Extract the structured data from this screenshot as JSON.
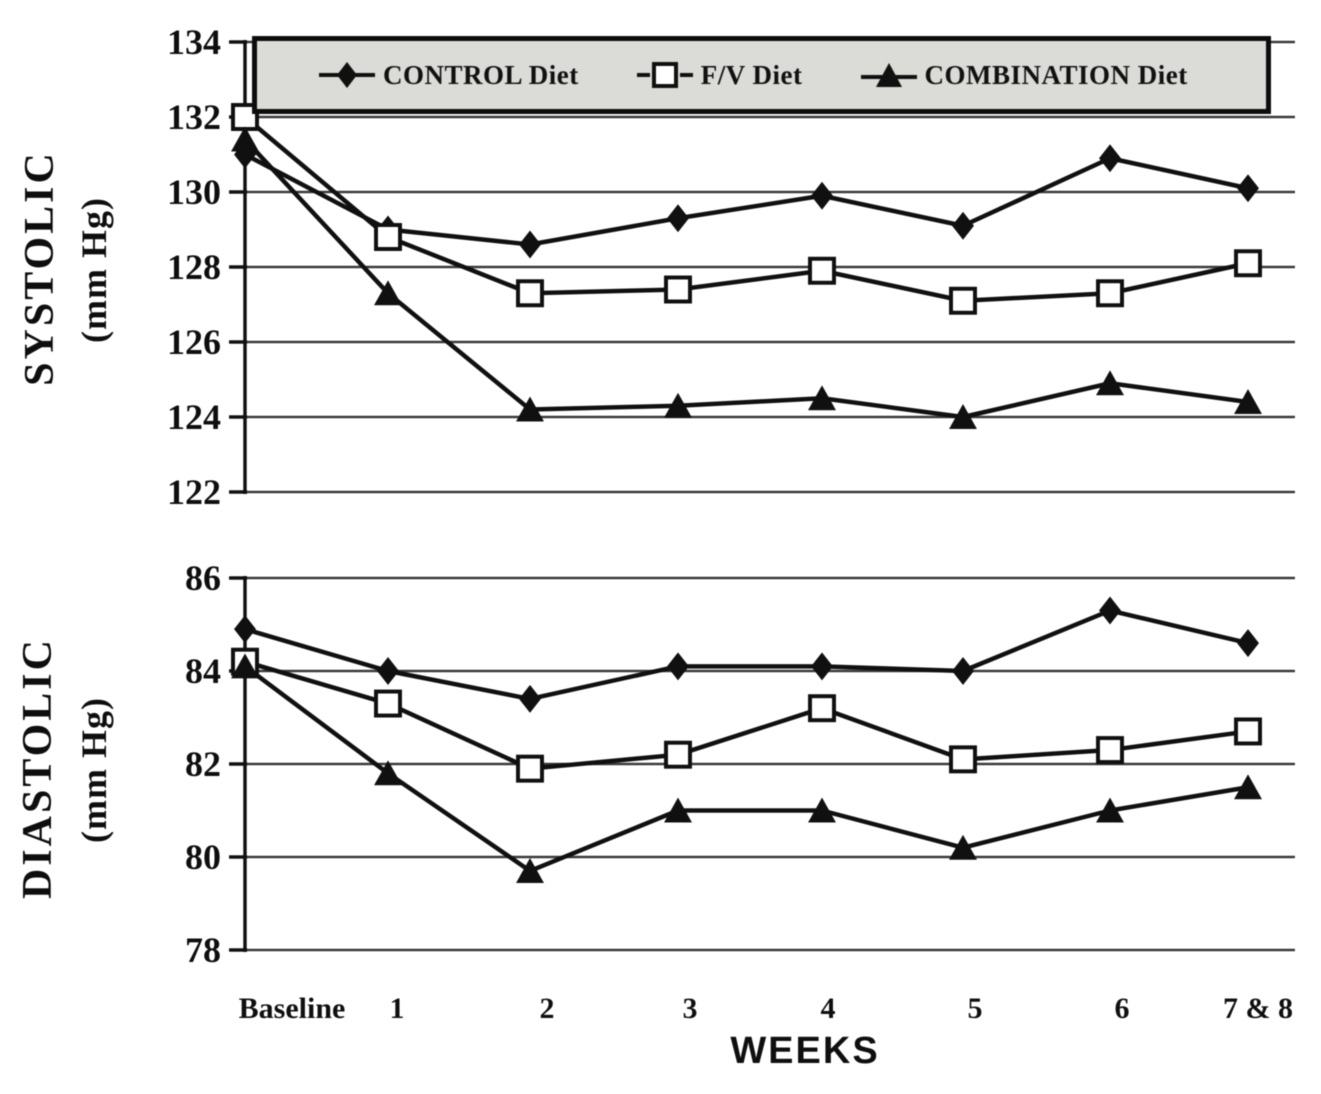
{
  "figure": {
    "xaxis_label": "WEEKS",
    "x_categories": [
      "Baseline",
      "1",
      "2",
      "3",
      "4",
      "5",
      "6",
      "7 & 8"
    ],
    "ink_color": "#141414",
    "background_color": "#ffffff"
  },
  "legend": {
    "background": "#d7d7d4",
    "border_color": "#111111",
    "items": [
      {
        "label": "CONTROL Diet",
        "marker": "filled-diamond"
      },
      {
        "label": "F/V Diet",
        "marker": "open-square"
      },
      {
        "label": "COMBINATION Diet",
        "marker": "filled-triangle"
      }
    ]
  },
  "chart_data": [
    {
      "type": "line",
      "title": "Systolic blood pressure by week",
      "ylabel_main": "SYSTOLIC",
      "ylabel_unit": "(mm Hg)",
      "categories": [
        "Baseline",
        "1",
        "2",
        "3",
        "4",
        "5",
        "6",
        "7 & 8"
      ],
      "ylim": [
        122,
        134
      ],
      "yticks": [
        134,
        132,
        130,
        128,
        126,
        124,
        122
      ],
      "grid": true,
      "legend_position": "top",
      "series": [
        {
          "name": "CONTROL Diet",
          "marker": "filled-diamond",
          "values": [
            131.0,
            129.0,
            128.6,
            129.3,
            129.9,
            129.1,
            130.9,
            130.1
          ]
        },
        {
          "name": "F/V Diet",
          "marker": "open-square",
          "values": [
            132.0,
            128.8,
            127.3,
            127.4,
            127.9,
            127.1,
            127.3,
            128.1
          ]
        },
        {
          "name": "COMBINATION Diet",
          "marker": "filled-triangle",
          "values": [
            131.4,
            127.3,
            124.2,
            124.3,
            124.5,
            124.0,
            124.9,
            124.4
          ]
        }
      ]
    },
    {
      "type": "line",
      "title": "Diastolic blood pressure by week",
      "ylabel_main": "DIASTOLIC",
      "ylabel_unit": "(mm Hg)",
      "categories": [
        "Baseline",
        "1",
        "2",
        "3",
        "4",
        "5",
        "6",
        "7 & 8"
      ],
      "ylim": [
        78,
        86
      ],
      "yticks": [
        86,
        84,
        82,
        80,
        78
      ],
      "grid": true,
      "series": [
        {
          "name": "CONTROL Diet",
          "marker": "filled-diamond",
          "values": [
            84.9,
            84.0,
            83.4,
            84.1,
            84.1,
            84.0,
            85.3,
            84.6
          ]
        },
        {
          "name": "F/V Diet",
          "marker": "open-square",
          "values": [
            84.2,
            83.3,
            81.9,
            82.2,
            83.2,
            82.1,
            82.3,
            82.7
          ]
        },
        {
          "name": "COMBINATION Diet",
          "marker": "filled-triangle",
          "values": [
            84.1,
            81.8,
            79.7,
            81.0,
            81.0,
            80.2,
            81.0,
            81.5
          ]
        }
      ]
    }
  ]
}
